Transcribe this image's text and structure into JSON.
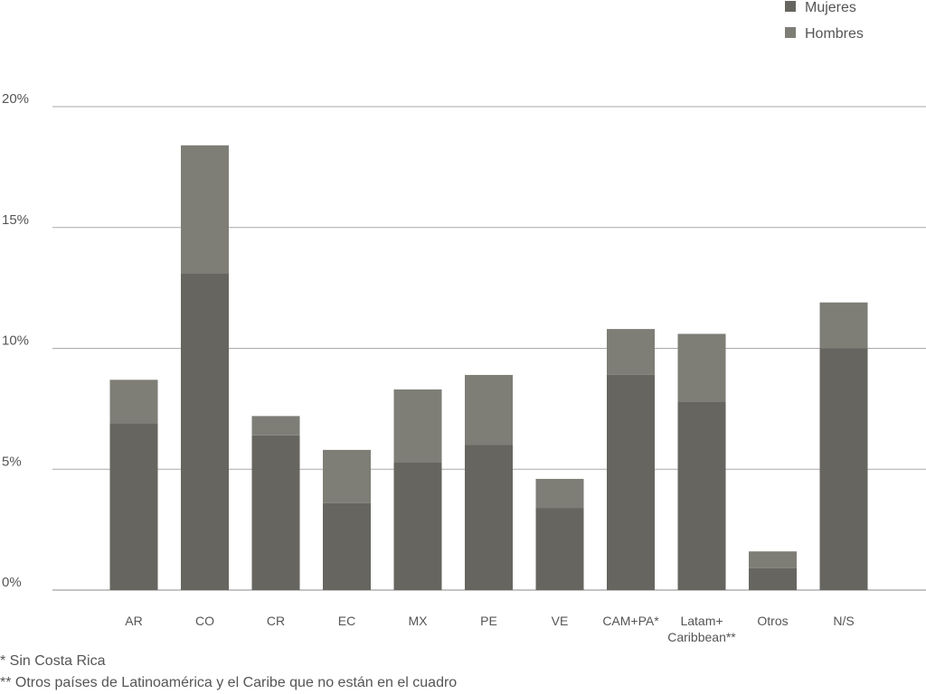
{
  "chart_data": {
    "type": "bar",
    "stacked": true,
    "categories": [
      "AR",
      "CO",
      "CR",
      "EC",
      "MX",
      "PE",
      "VE",
      "CAM+PA*",
      "Latam+\nCaribbean**",
      "Otros",
      "N/S"
    ],
    "series": [
      {
        "name": "Mujeres",
        "color": "#66655f",
        "values": [
          6.9,
          13.1,
          6.4,
          3.6,
          5.3,
          6.0,
          3.4,
          8.9,
          7.8,
          0.9,
          10.0
        ]
      },
      {
        "name": "Hombres",
        "color": "#7e7e77",
        "values": [
          1.8,
          5.3,
          0.8,
          2.2,
          3.0,
          2.9,
          1.2,
          1.9,
          2.8,
          0.7,
          1.9
        ]
      }
    ],
    "ylim": [
      0,
      20
    ],
    "yticks": [
      "0%",
      "5%",
      "10%",
      "15%",
      "20%"
    ],
    "ytick_values": [
      0,
      5,
      10,
      15,
      20
    ],
    "grid": true,
    "legend_position": "top-right"
  },
  "footnotes": [
    "* Sin Costa Rica",
    "** Otros países de Latinoamérica y el Caribe que no están en el cuadro"
  ]
}
